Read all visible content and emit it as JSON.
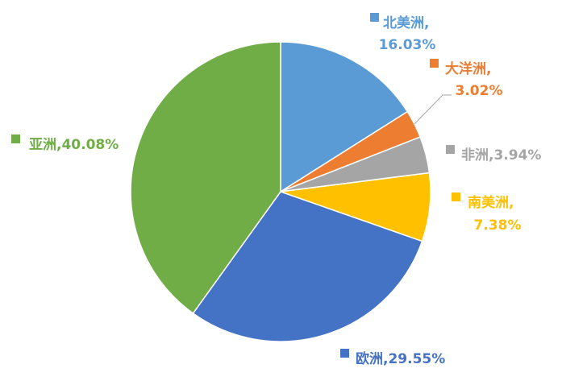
{
  "chart_data": {
    "type": "pie",
    "start_angle_deg": 0,
    "direction": "clockwise",
    "slices": [
      {
        "label": "北美洲",
        "value": 16.03,
        "display": "16.03%",
        "color": "#5B9BD5"
      },
      {
        "label": "大洋洲",
        "value": 3.02,
        "display": "3.02%",
        "color": "#ED7D31"
      },
      {
        "label": "非洲",
        "value": 3.94,
        "display": "3.94%",
        "color": "#A5A5A5"
      },
      {
        "label": "南美洲",
        "value": 7.38,
        "display": "7.38%",
        "color": "#FFC000"
      },
      {
        "label": "欧洲",
        "value": 29.55,
        "display": "29.55%",
        "color": "#4472C4"
      },
      {
        "label": "亚洲",
        "value": 40.08,
        "display": "40.08%",
        "color": "#70AD47"
      }
    ]
  }
}
